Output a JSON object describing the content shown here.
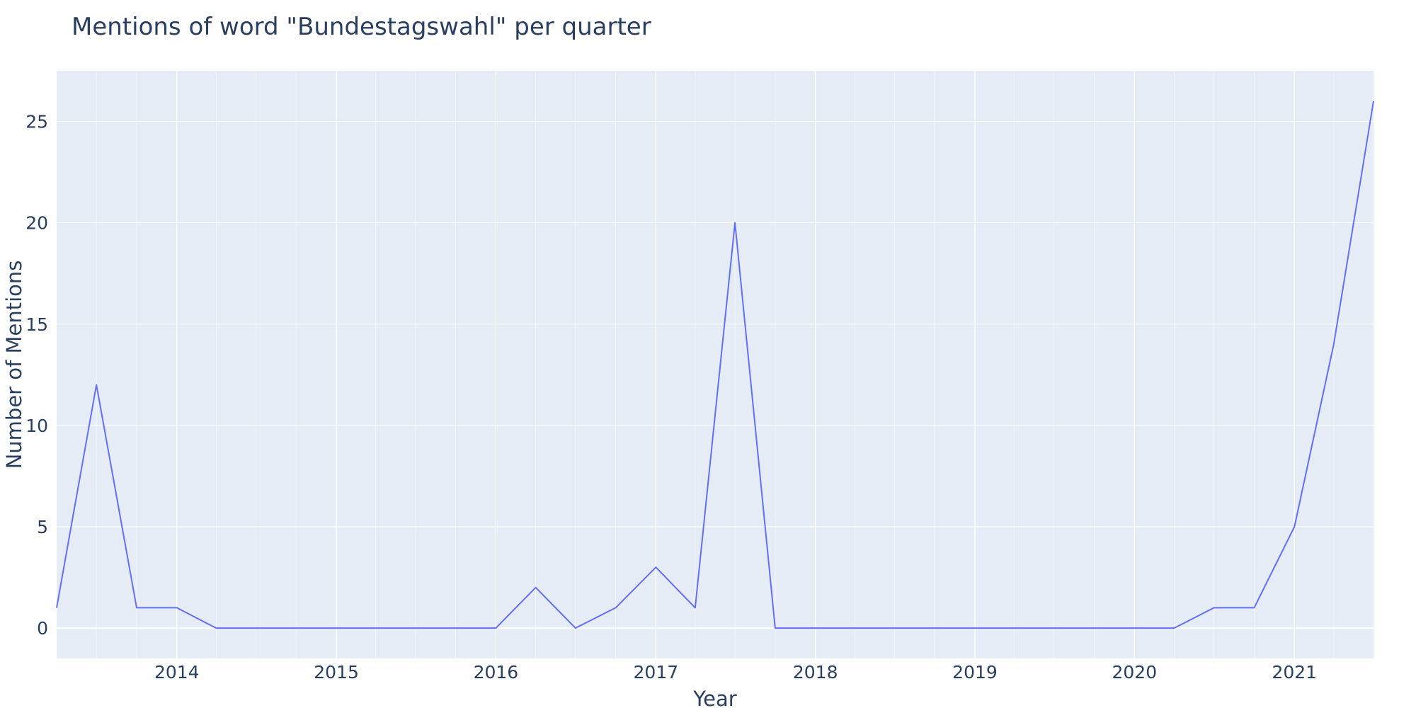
{
  "chart_data": {
    "type": "line",
    "title": "Mentions of word \"Bundestagswahl\" per quarter",
    "xlabel": "Year",
    "ylabel": "Number of Mentions",
    "x_tick_labels": [
      "2014",
      "2015",
      "2016",
      "2017",
      "2018",
      "2019",
      "2020",
      "2021"
    ],
    "y_tick_labels": [
      "0",
      "5",
      "10",
      "15",
      "20",
      "25"
    ],
    "xlim": [
      "2013-04-01",
      "2021-07-01"
    ],
    "ylim": [
      -1.5,
      27.5
    ],
    "grid": true,
    "series": [
      {
        "color": "#636efa",
        "x": [
          "2013-04-01",
          "2013-07-01",
          "2013-10-01",
          "2014-01-01",
          "2014-04-01",
          "2014-07-01",
          "2014-10-01",
          "2015-01-01",
          "2015-04-01",
          "2015-07-01",
          "2015-10-01",
          "2016-01-01",
          "2016-04-01",
          "2016-07-01",
          "2016-10-01",
          "2017-01-01",
          "2017-04-01",
          "2017-07-01",
          "2017-10-01",
          "2018-01-01",
          "2018-04-01",
          "2018-07-01",
          "2018-10-01",
          "2019-01-01",
          "2019-04-01",
          "2019-07-01",
          "2019-10-01",
          "2020-01-01",
          "2020-04-01",
          "2020-07-01",
          "2020-10-01",
          "2021-01-01",
          "2021-04-01",
          "2021-07-01"
        ],
        "y": [
          1,
          12,
          1,
          1,
          0,
          0,
          0,
          0,
          0,
          0,
          0,
          0,
          2,
          0,
          1,
          3,
          1,
          20,
          0,
          0,
          0,
          0,
          0,
          0,
          0,
          0,
          0,
          0,
          0,
          1,
          1,
          5,
          14,
          26
        ]
      }
    ]
  },
  "colors": {
    "plot_background": "#e5ecf6",
    "grid": "#ffffff",
    "text": "#2a3f5f",
    "line": "#636efa"
  }
}
